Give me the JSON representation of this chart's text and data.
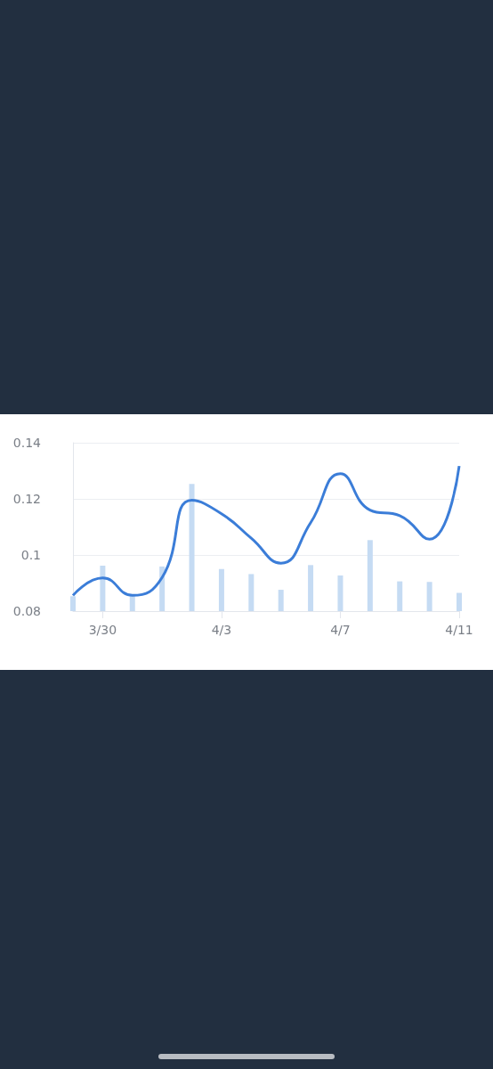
{
  "chart_data": {
    "type": "line",
    "categories": [
      null,
      "3/30",
      null,
      null,
      null,
      "4/3",
      null,
      null,
      null,
      "4/7",
      null,
      null,
      null,
      "4/11"
    ],
    "series": [
      {
        "type": "bar",
        "color": "#c5dbf3",
        "values": [
          0.0853,
          0.0962,
          0.0855,
          0.0959,
          0.1253,
          0.095,
          0.0932,
          0.0876,
          0.0964,
          0.0927,
          0.1053,
          0.0906,
          0.0904,
          0.0865
        ]
      },
      {
        "color": "#3b7dd8",
        "values": [
          0.0856,
          0.0918,
          0.0856,
          0.092,
          0.1195,
          0.1147,
          0.106,
          0.0971,
          0.1115,
          0.129,
          0.116,
          0.114,
          0.1056,
          0.1317
        ]
      }
    ],
    "ylim": [
      0.08,
      0.14
    ],
    "yticks": [
      0.08,
      0.1,
      0.12,
      0.14
    ],
    "grid": "y",
    "marker": "none"
  }
}
